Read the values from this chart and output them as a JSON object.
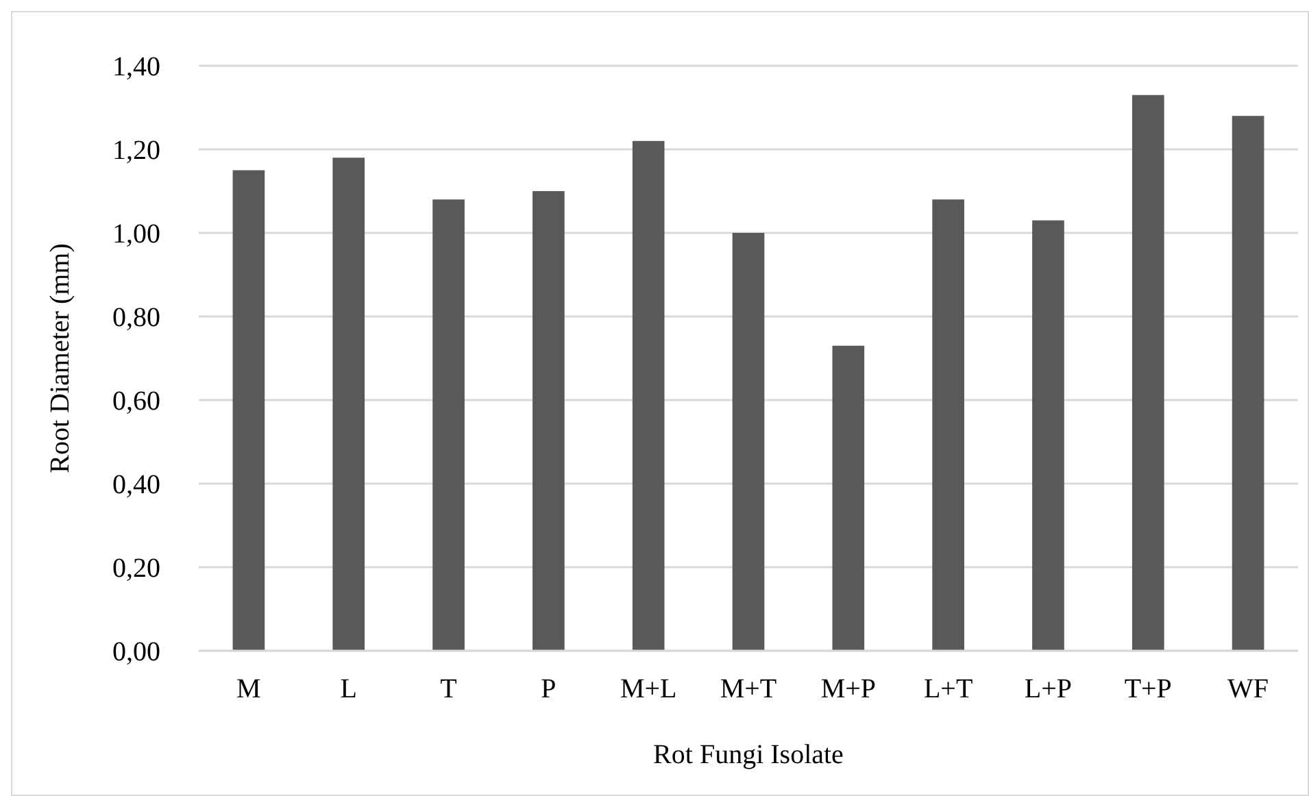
{
  "chart_data": {
    "type": "bar",
    "xlabel": "Rot Fungi Isolate",
    "ylabel": "Root Diameter (mm)",
    "categories": [
      "M",
      "L",
      "T",
      "P",
      "M+L",
      "M+T",
      "M+P",
      "L+T",
      "L+P",
      "T+P",
      "WF"
    ],
    "values": [
      1.15,
      1.18,
      1.08,
      1.1,
      1.22,
      1.0,
      0.73,
      1.08,
      1.03,
      1.33,
      1.28
    ],
    "color": "#595959",
    "ylim": [
      0,
      1.4
    ],
    "yticks": [
      {
        "value": 0,
        "label": "0,00"
      },
      {
        "value": 0.2,
        "label": "0,20"
      },
      {
        "value": 0.4,
        "label": "0,40"
      },
      {
        "value": 0.6,
        "label": "0,60"
      },
      {
        "value": 0.8,
        "label": "0,80"
      },
      {
        "value": 1.0,
        "label": "1,00"
      },
      {
        "value": 1.2,
        "label": "1,20"
      },
      {
        "value": 1.4,
        "label": "1,40"
      }
    ],
    "grid": "y"
  }
}
